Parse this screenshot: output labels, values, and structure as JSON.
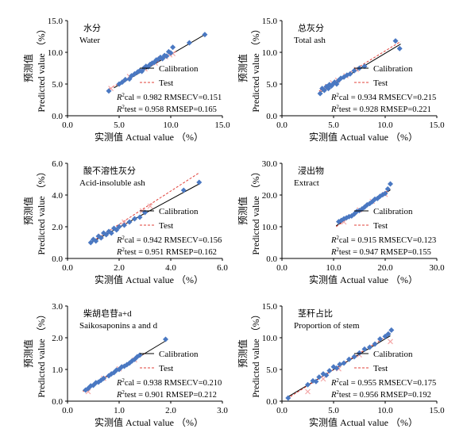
{
  "figure": {
    "xlabel": "实测值 Actual value （%）",
    "ylabel_cn": "预测值",
    "ylabel_en": "Predicted value （%）",
    "legend": {
      "calibration": "Calibration",
      "test": "Test"
    },
    "colors": {
      "calibration_point": "#4a78c2",
      "test_point": "#f4a7a7",
      "calibration_line": "#000000",
      "test_line": "#e0403a"
    }
  },
  "chart_data": [
    {
      "type": "scatter",
      "title_cn": "水分",
      "title_en": "Water",
      "xlim": [
        0,
        15
      ],
      "ylim": [
        0,
        15
      ],
      "xticks": [
        "0.0",
        "5.0",
        "10.0",
        "15.0"
      ],
      "yticks": [
        "0.0",
        "5.0",
        "10.0",
        "15.0"
      ],
      "stat1": "R2cal = 0.982  RMSECV=0.151",
      "stat2": "R2test = 0.958  RMSEP=0.165",
      "calibration_line": [
        [
          4.5,
          4.4
        ],
        [
          13.3,
          12.8
        ]
      ],
      "test_line": [
        [
          4.0,
          4.2
        ],
        [
          10.5,
          10.1
        ]
      ],
      "series": [
        {
          "name": "Calibration",
          "x": [
            4.0,
            5.0,
            5.3,
            5.6,
            6.0,
            6.2,
            6.5,
            6.8,
            7.0,
            7.2,
            7.4,
            7.6,
            7.8,
            8.0,
            8.2,
            8.4,
            8.6,
            8.8,
            9.0,
            9.2,
            9.4,
            9.6,
            9.8,
            10.0,
            10.2,
            11.8,
            13.3
          ],
          "y": [
            3.9,
            5.0,
            5.3,
            5.7,
            5.8,
            6.3,
            6.6,
            6.9,
            7.1,
            7.0,
            7.5,
            7.8,
            7.7,
            8.1,
            8.3,
            8.4,
            8.8,
            8.9,
            9.2,
            9.0,
            9.5,
            9.4,
            10.1,
            9.9,
            10.8,
            11.5,
            12.8
          ]
        },
        {
          "name": "Test",
          "x": [
            4.2,
            6.0,
            7.5,
            8.5,
            9.0,
            9.5,
            9.9,
            10.2
          ],
          "y": [
            4.3,
            6.2,
            7.4,
            8.3,
            9.0,
            9.3,
            9.6,
            9.8
          ]
        }
      ]
    },
    {
      "type": "scatter",
      "title_cn": "总灰分",
      "title_en": "Total ash",
      "xlim": [
        0,
        15
      ],
      "ylim": [
        0,
        15
      ],
      "xticks": [
        "0.0",
        "5.0",
        "10.0",
        "15.0"
      ],
      "yticks": [
        "0.0",
        "5.0",
        "10.0",
        "15.0"
      ],
      "stat1": "R2cal = 0.934  RMSECV=0.215",
      "stat2": "R2test = 0.928  RMSEP=0.221",
      "calibration_line": [
        [
          3.6,
          3.6
        ],
        [
          11.5,
          11.3
        ]
      ],
      "test_line": [
        [
          3.6,
          3.9
        ],
        [
          11.5,
          11.7
        ]
      ],
      "series": [
        {
          "name": "Calibration",
          "x": [
            3.7,
            3.9,
            4.1,
            4.3,
            4.5,
            4.6,
            4.8,
            5.0,
            5.1,
            5.3,
            5.5,
            5.7,
            6.0,
            6.3,
            6.6,
            7.0,
            7.5,
            8.0,
            11.0,
            11.4
          ],
          "y": [
            3.5,
            4.3,
            4.0,
            4.6,
            4.3,
            4.9,
            4.7,
            5.1,
            5.3,
            5.0,
            5.6,
            5.9,
            6.1,
            6.4,
            6.6,
            7.1,
            7.5,
            7.8,
            11.8,
            10.6
          ]
        },
        {
          "name": "Test",
          "x": [
            4.0,
            4.4,
            4.9,
            5.4,
            6.2,
            7.2
          ],
          "y": [
            4.2,
            4.6,
            5.2,
            5.6,
            6.3,
            7.3
          ]
        }
      ]
    },
    {
      "type": "scatter",
      "title_cn": "酸不溶性灰分",
      "title_en": "Acid-insoluble ash",
      "xlim": [
        0,
        6
      ],
      "ylim": [
        0,
        6
      ],
      "xticks": [
        "0.0",
        "2.0",
        "4.0",
        "6.0"
      ],
      "yticks": [
        "0.0",
        "2.0",
        "4.0",
        "6.0"
      ],
      "stat1": "R2cal = 0.942  RMSECV=0.156",
      "stat2": "R2test = 0.951  RMSEP=0.162",
      "calibration_line": [
        [
          0.85,
          0.95
        ],
        [
          5.1,
          4.7
        ]
      ],
      "test_line": [
        [
          0.85,
          0.95
        ],
        [
          5.1,
          5.4
        ]
      ],
      "series": [
        {
          "name": "Calibration",
          "x": [
            0.9,
            1.0,
            1.1,
            1.2,
            1.3,
            1.4,
            1.5,
            1.6,
            1.7,
            1.8,
            1.9,
            2.0,
            2.2,
            2.4,
            2.6,
            2.8,
            3.0,
            4.5,
            5.1
          ],
          "y": [
            1.0,
            1.2,
            1.1,
            1.4,
            1.3,
            1.6,
            1.5,
            1.7,
            1.6,
            1.9,
            1.8,
            2.0,
            2.1,
            2.3,
            2.5,
            2.6,
            2.9,
            4.3,
            4.8
          ]
        },
        {
          "name": "Test",
          "x": [
            1.3,
            2.2,
            2.9,
            3.2
          ],
          "y": [
            1.4,
            2.3,
            3.0,
            3.3
          ]
        }
      ]
    },
    {
      "type": "scatter",
      "title_cn": "浸出物",
      "title_en": "Extract",
      "xlim": [
        0,
        30
      ],
      "ylim": [
        0,
        30
      ],
      "xticks": [
        "0.0",
        "10.0",
        "20.0",
        "30.0"
      ],
      "yticks": [
        "0.0",
        "10.0",
        "20.0",
        "30.0"
      ],
      "stat1": "R2cal = 0.915  RMSECV=0.123",
      "stat2": "R2test = 0.947  RMSEP=0.155",
      "calibration_line": [
        [
          10.5,
          10.3
        ],
        [
          21.0,
          21.6
        ]
      ],
      "test_line": [
        [
          10.5,
          10.0
        ],
        [
          21.0,
          22.0
        ]
      ],
      "series": [
        {
          "name": "Calibration",
          "x": [
            11.0,
            11.5,
            12.0,
            12.5,
            13.0,
            13.5,
            14.0,
            14.5,
            15.0,
            15.5,
            16.0,
            16.5,
            17.0,
            17.5,
            18.0,
            18.5,
            19.0,
            19.5,
            20.0,
            20.5,
            21.0
          ],
          "y": [
            11.6,
            12.0,
            12.5,
            12.8,
            13.2,
            13.4,
            14.0,
            14.8,
            15.1,
            15.6,
            16.2,
            16.9,
            17.3,
            17.9,
            18.7,
            18.9,
            19.6,
            20.1,
            20.5,
            21.9,
            23.5
          ]
        },
        {
          "name": "Test",
          "x": [
            12.0,
            15.0,
            17.5,
            20.0
          ],
          "y": [
            11.5,
            15.3,
            18.0,
            20.2
          ]
        }
      ]
    },
    {
      "type": "scatter",
      "title_cn": "柴胡皂苷a+d",
      "title_en": "Saikosaponins a and d",
      "xlim": [
        0,
        3
      ],
      "ylim": [
        0,
        3
      ],
      "xticks": [
        "0.0",
        "1.0",
        "2.0",
        "3.0"
      ],
      "yticks": [
        "0.0",
        "1.0",
        "2.0",
        "3.0"
      ],
      "stat1": "R2cal = 0.938  RMSECV=0.210",
      "stat2": "R2test = 0.901  RMSEP=0.212",
      "calibration_line": [
        [
          0.3,
          0.33
        ],
        [
          1.9,
          1.9
        ]
      ],
      "test_line": [
        [
          0.3,
          0.3
        ],
        [
          1.5,
          1.5
        ]
      ],
      "series": [
        {
          "name": "Calibration",
          "x": [
            0.35,
            0.4,
            0.45,
            0.5,
            0.55,
            0.6,
            0.65,
            0.7,
            0.8,
            0.85,
            0.9,
            0.95,
            1.0,
            1.05,
            1.1,
            1.15,
            1.2,
            1.25,
            1.3,
            1.35,
            1.4,
            1.9
          ],
          "y": [
            0.35,
            0.4,
            0.48,
            0.5,
            0.58,
            0.6,
            0.66,
            0.72,
            0.8,
            0.86,
            0.9,
            0.98,
            1.0,
            1.08,
            1.1,
            1.15,
            1.2,
            1.27,
            1.32,
            1.4,
            1.45,
            1.95
          ]
        },
        {
          "name": "Test",
          "x": [
            0.4,
            0.7,
            1.0,
            1.3
          ],
          "y": [
            0.3,
            0.72,
            1.02,
            1.3
          ]
        }
      ]
    },
    {
      "type": "scatter",
      "title_cn": "茎秆占比",
      "title_en": "Proportion of stem",
      "xlim": [
        0,
        15
      ],
      "ylim": [
        0,
        15
      ],
      "xticks": [
        "0.0",
        "5.0",
        "10.0",
        "15.0"
      ],
      "yticks": [
        "0.0",
        "5.0",
        "10.0",
        "15.0"
      ],
      "stat1": "R2cal = 0.955  RMSECV=0.175",
      "stat2": "R2test = 0.956  RMSEP=0.192",
      "calibration_line": [
        [
          0.5,
          0.6
        ],
        [
          10.5,
          10.3
        ]
      ],
      "test_line": [
        [
          0.5,
          0.4
        ],
        [
          10.5,
          10.6
        ]
      ],
      "series": [
        {
          "name": "Calibration",
          "x": [
            0.6,
            2.5,
            3.0,
            3.3,
            3.6,
            4.0,
            4.3,
            4.6,
            5.0,
            5.3,
            5.6,
            6.0,
            6.5,
            7.0,
            7.5,
            8.0,
            8.5,
            9.0,
            9.5,
            10.0,
            10.3,
            10.6
          ],
          "y": [
            0.5,
            2.6,
            3.2,
            3.1,
            3.8,
            4.3,
            4.1,
            4.8,
            5.4,
            5.2,
            5.8,
            6.0,
            6.6,
            7.0,
            7.6,
            8.2,
            8.5,
            9.0,
            9.8,
            10.2,
            10.6,
            11.2
          ]
        },
        {
          "name": "Test",
          "x": [
            2.5,
            4.0,
            5.5,
            7.5,
            10.5
          ],
          "y": [
            1.5,
            3.5,
            5.1,
            7.3,
            9.4
          ]
        }
      ]
    }
  ]
}
